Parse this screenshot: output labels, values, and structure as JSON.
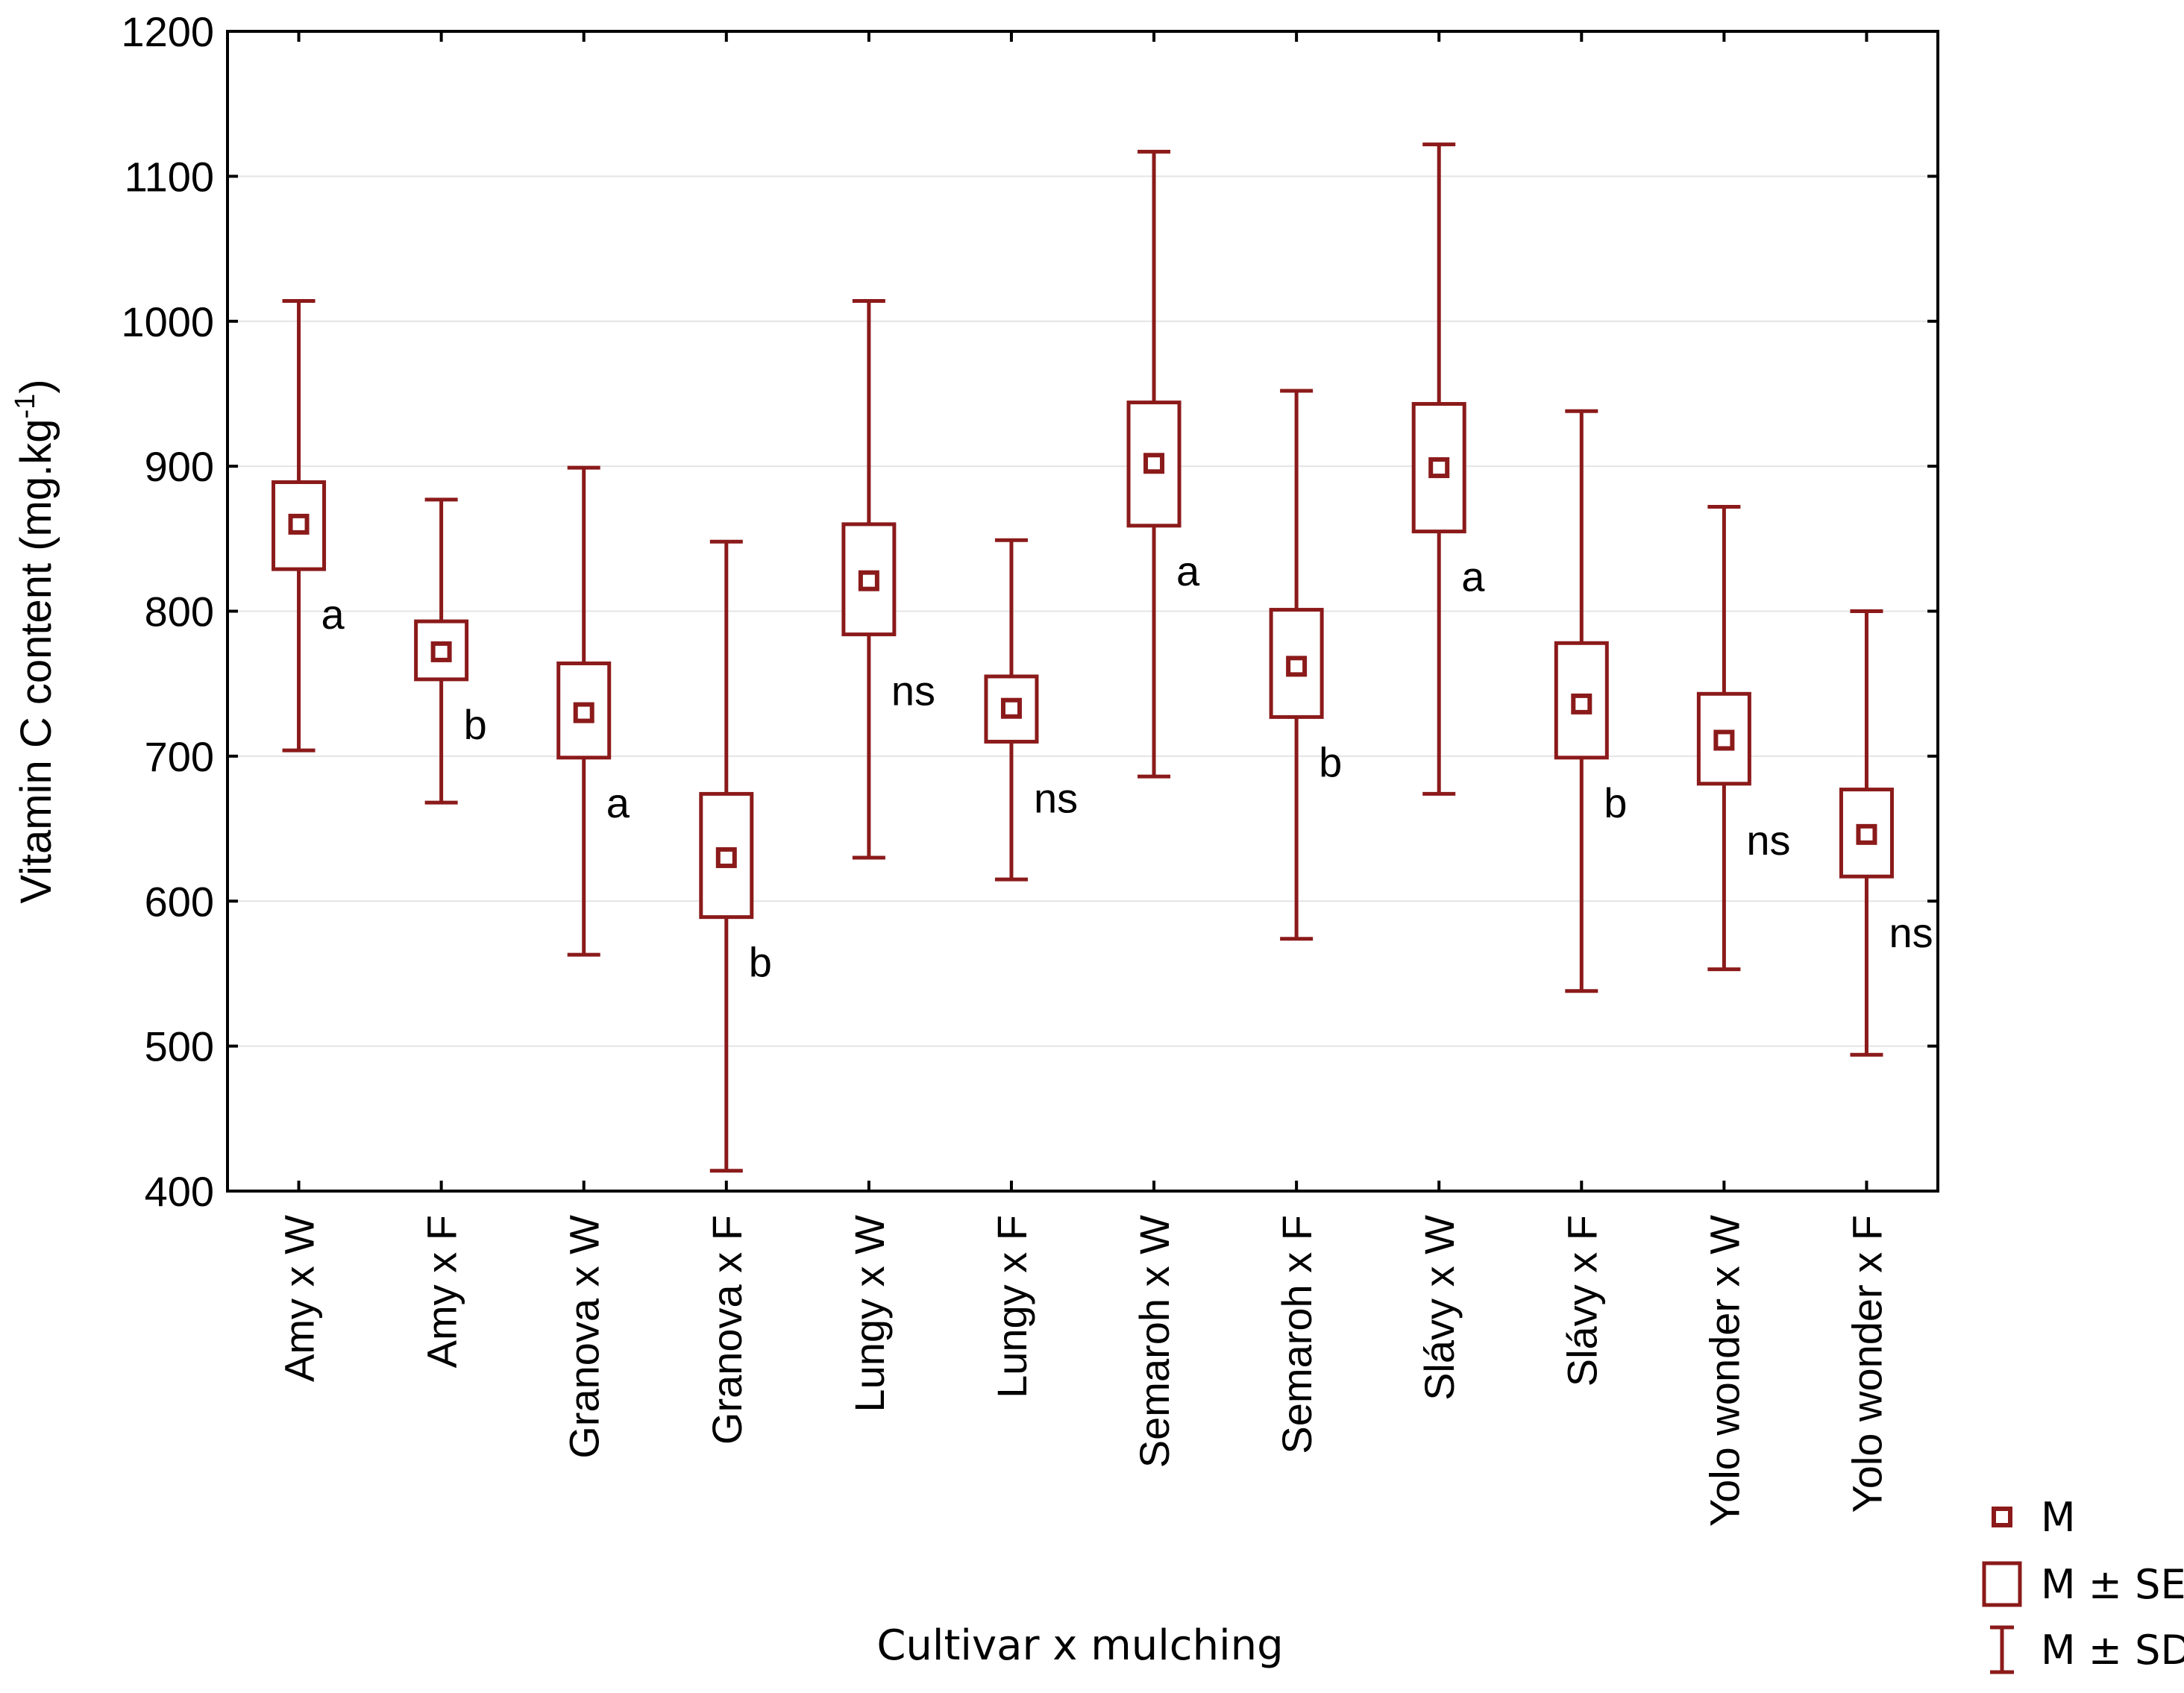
{
  "chart_data": {
    "type": "box",
    "xlabel": "Cultivar x mulching",
    "ylabel": "Vitamin C content (mg.kg",
    "ylabel_superscript": "-1",
    "ylabel_suffix": ")",
    "ylim": [
      400,
      1200
    ],
    "yticks": [
      400,
      500,
      600,
      700,
      800,
      900,
      1000,
      1100,
      1200
    ],
    "grid": true,
    "colors": {
      "series": "#8B1A1A",
      "grid": "#e4e4e4",
      "axis": "#000000"
    },
    "categories": [
      "Amy x W",
      "Amy x F",
      "Granova x W",
      "Granova x F",
      "Lungy x W",
      "Lungy x F",
      "Semaroh x W",
      "Semaroh x F",
      "Slávy x W",
      "Slávy x F",
      "Yolo wonder x W",
      "Yolo wonder x F"
    ],
    "mean": [
      860,
      772,
      730,
      630,
      821,
      733,
      902,
      762,
      899,
      736,
      711,
      646
    ],
    "se_low": [
      829,
      753,
      699,
      589,
      784,
      710,
      859,
      727,
      855,
      699,
      681,
      617
    ],
    "se_high": [
      889,
      793,
      764,
      674,
      860,
      755,
      944,
      801,
      943,
      778,
      743,
      677
    ],
    "sd_low": [
      704,
      668,
      563,
      414,
      630,
      615,
      686,
      574,
      674,
      538,
      553,
      494
    ],
    "sd_high": [
      1014,
      877,
      899,
      848,
      1014,
      849,
      1117,
      952,
      1122,
      938,
      872,
      800
    ],
    "letters": [
      "a",
      "b",
      "a",
      "b",
      "ns",
      "ns",
      "a",
      "b",
      "a",
      "b",
      "ns",
      "ns"
    ],
    "legend": {
      "placement": "bottom-right",
      "items": [
        {
          "symbol": "mean-marker",
          "label": "M"
        },
        {
          "symbol": "se-box",
          "label": "M ± SE"
        },
        {
          "symbol": "sd-whisker",
          "label": "M ± SD"
        }
      ]
    }
  }
}
